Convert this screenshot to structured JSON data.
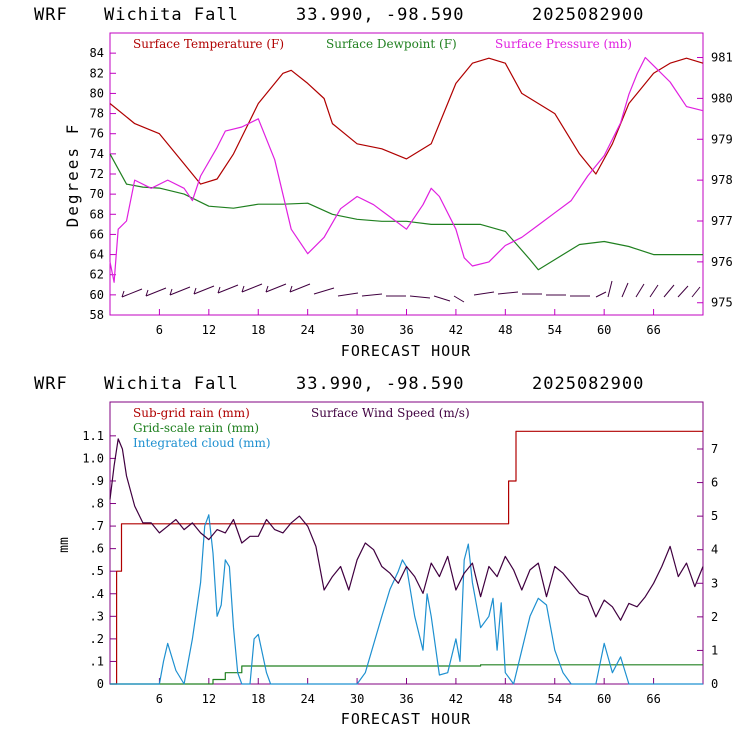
{
  "charts": [
    {
      "title": {
        "model": "WRF",
        "station": "Wichita Fall",
        "coords": "33.990, -98.590",
        "date": "2025082900"
      },
      "xlabel": "FORECAST HOUR",
      "ylabel_left": "Degrees F",
      "legend": [
        {
          "label": "Surface Temperature (F)",
          "color": "#b00000"
        },
        {
          "label": "Surface Dewpoint (F)",
          "color": "#208020"
        },
        {
          "label": "Surface Pressure (mb)",
          "color": "#e020e0"
        }
      ]
    },
    {
      "title": {
        "model": "WRF",
        "station": "Wichita Fall",
        "coords": "33.990, -98.590",
        "date": "2025082900"
      },
      "xlabel": "FORECAST HOUR",
      "ylabel_left": "mm",
      "legend": [
        {
          "label": "Sub-grid rain (mm)",
          "color": "#b00000"
        },
        {
          "label": "Surface Wind Speed (m/s)",
          "color": "#400040"
        },
        {
          "label": "Grid-scale rain (mm)",
          "color": "#208020"
        },
        {
          "label": "Integrated cloud (mm)",
          "color": "#1e90d0"
        }
      ]
    }
  ],
  "chart_data": [
    {
      "type": "line",
      "xlim": [
        0,
        72
      ],
      "x_ticks": [
        "6",
        "12",
        "18",
        "24",
        "30",
        "36",
        "42",
        "48",
        "54",
        "60",
        "66"
      ],
      "ylim_left": [
        58,
        86
      ],
      "y_ticks_left": [
        "58",
        "60",
        "62",
        "64",
        "66",
        "68",
        "70",
        "72",
        "74",
        "76",
        "78",
        "80",
        "82",
        "84"
      ],
      "ylim_right": [
        974.7,
        981.6
      ],
      "y_ticks_right": [
        "975",
        "976",
        "977",
        "978",
        "979",
        "980",
        "981"
      ],
      "series": [
        {
          "name": "Surface Temperature (F)",
          "axis": "left",
          "color": "#b00000",
          "x": [
            0,
            3,
            6,
            9,
            11,
            13,
            15,
            18,
            21,
            22,
            24,
            26,
            27,
            30,
            33,
            36,
            39,
            42,
            44,
            46,
            48,
            50,
            54,
            57,
            59,
            61,
            63,
            66,
            68,
            70,
            72
          ],
          "y": [
            79,
            77,
            76,
            73,
            71,
            71.5,
            74,
            79,
            82,
            82.3,
            81,
            79.5,
            77,
            75,
            74.5,
            73.5,
            75,
            81,
            83,
            83.5,
            83,
            80,
            78,
            74,
            72,
            75,
            79,
            82,
            83,
            83.5,
            83
          ]
        },
        {
          "name": "Surface Dewpoint (F)",
          "axis": "left",
          "color": "#208020",
          "x": [
            0,
            2,
            4,
            6,
            9,
            12,
            15,
            18,
            21,
            24,
            27,
            30,
            33,
            36,
            39,
            42,
            45,
            48,
            51,
            52,
            54,
            57,
            60,
            63,
            66,
            69,
            72
          ],
          "y": [
            74,
            71,
            70.7,
            70.6,
            70,
            68.8,
            68.6,
            69,
            69,
            69.1,
            68,
            67.5,
            67.3,
            67.3,
            67,
            67,
            67,
            66.3,
            63.5,
            62.5,
            63.5,
            65,
            65.3,
            64.8,
            64,
            64,
            64
          ]
        },
        {
          "name": "Surface Pressure (mb)",
          "axis": "right",
          "color": "#e020e0",
          "x": [
            0,
            0.5,
            1,
            2,
            3,
            5,
            7,
            9,
            10,
            11,
            13,
            14,
            16,
            18,
            20,
            22,
            24,
            26,
            28,
            30,
            32,
            34,
            36,
            38,
            39,
            40,
            42,
            43,
            44,
            46,
            48,
            50,
            52,
            54,
            56,
            58,
            60,
            62,
            63,
            64,
            65,
            66,
            68,
            70,
            72
          ],
          "y": [
            976,
            975.5,
            976.8,
            977,
            978,
            977.8,
            978,
            977.8,
            977.5,
            978.1,
            978.8,
            979.2,
            979.3,
            979.5,
            978.5,
            976.8,
            976.2,
            976.6,
            977.3,
            977.6,
            977.4,
            977.1,
            976.8,
            977.4,
            977.8,
            977.6,
            976.8,
            976.1,
            975.9,
            976,
            976.4,
            976.6,
            976.9,
            977.2,
            977.5,
            978.1,
            978.6,
            979.4,
            980.1,
            980.6,
            981,
            980.8,
            980.4,
            979.8,
            979.7
          ]
        }
      ]
    },
    {
      "type": "line",
      "xlim": [
        0,
        72
      ],
      "x_ticks": [
        "6",
        "12",
        "18",
        "24",
        "30",
        "36",
        "42",
        "48",
        "54",
        "60",
        "66"
      ],
      "ylim_left": [
        0,
        1.25
      ],
      "y_ticks_left": [
        "0",
        ".1",
        ".2",
        ".3",
        ".4",
        ".5",
        ".6",
        ".7",
        ".8",
        ".9",
        "1.0",
        "1.1"
      ],
      "ylim_right": [
        0,
        8.4
      ],
      "y_ticks_right": [
        "0",
        "1",
        "2",
        "3",
        "4",
        "5",
        "6",
        "7"
      ],
      "series": [
        {
          "name": "Sub-grid rain (mm)",
          "axis": "left",
          "color": "#b00000",
          "step": true,
          "x": [
            0,
            0.8,
            1.4,
            47.6,
            48.4,
            49.3,
            72
          ],
          "y": [
            0,
            0.5,
            0.71,
            0.71,
            0.9,
            1.12,
            1.12
          ]
        },
        {
          "name": "Grid-scale rain (mm)",
          "axis": "left",
          "color": "#208020",
          "step": true,
          "x": [
            0,
            11,
            12.5,
            14,
            16,
            44.5,
            45,
            72
          ],
          "y": [
            0,
            0,
            0.02,
            0.05,
            0.08,
            0.08,
            0.085,
            0.085
          ]
        },
        {
          "name": "Integrated cloud (mm)",
          "axis": "left",
          "color": "#1e90d0",
          "x": [
            0,
            6,
            6.5,
            7,
            8,
            9,
            10,
            11,
            11.5,
            12,
            12.5,
            13,
            13.5,
            14,
            14.5,
            15,
            15.5,
            16,
            17,
            17.5,
            18,
            19,
            19.5,
            30,
            31,
            33,
            34,
            35,
            35.5,
            36,
            37,
            38,
            38.5,
            39,
            40,
            41,
            42,
            42.5,
            43,
            43.5,
            44,
            45,
            46,
            46.5,
            47,
            47.5,
            48,
            49,
            50,
            51,
            52,
            53,
            54,
            55,
            56,
            57,
            58,
            59,
            60,
            61,
            62,
            63,
            72
          ],
          "y": [
            0,
            0,
            0.1,
            0.18,
            0.06,
            0,
            0.2,
            0.45,
            0.7,
            0.75,
            0.58,
            0.3,
            0.35,
            0.55,
            0.52,
            0.25,
            0.05,
            0,
            0,
            0.2,
            0.22,
            0.05,
            0,
            0,
            0.05,
            0.3,
            0.42,
            0.5,
            0.55,
            0.52,
            0.3,
            0.15,
            0.4,
            0.3,
            0.04,
            0.05,
            0.2,
            0.1,
            0.55,
            0.62,
            0.45,
            0.25,
            0.3,
            0.38,
            0.15,
            0.36,
            0.05,
            0,
            0.15,
            0.3,
            0.38,
            0.35,
            0.15,
            0.05,
            0,
            0,
            0,
            0,
            0.18,
            0.05,
            0.12,
            0,
            0
          ]
        },
        {
          "name": "Surface Wind Speed (m/s)",
          "axis": "right",
          "color": "#400040",
          "x": [
            0,
            0.5,
            1,
            1.5,
            2,
            3,
            4,
            5,
            6,
            7,
            8,
            9,
            10,
            11,
            12,
            13,
            14,
            15,
            16,
            17,
            18,
            19,
            20,
            21,
            22,
            23,
            24,
            25,
            26,
            27,
            28,
            29,
            30,
            31,
            32,
            33,
            34,
            35,
            36,
            37,
            38,
            39,
            40,
            41,
            42,
            43,
            44,
            45,
            46,
            47,
            48,
            49,
            50,
            51,
            52,
            53,
            54,
            55,
            56,
            57,
            58,
            59,
            60,
            61,
            62,
            63,
            64,
            65,
            66,
            67,
            68,
            69,
            70,
            71,
            72
          ],
          "y": [
            5.5,
            6.5,
            7.3,
            7,
            6.2,
            5.3,
            4.8,
            4.8,
            4.5,
            4.7,
            4.9,
            4.6,
            4.8,
            4.5,
            4.3,
            4.6,
            4.5,
            4.9,
            4.2,
            4.4,
            4.4,
            4.9,
            4.6,
            4.5,
            4.8,
            5,
            4.7,
            4.1,
            2.8,
            3.2,
            3.5,
            2.8,
            3.7,
            4.2,
            4,
            3.5,
            3.3,
            3,
            3.5,
            3.2,
            2.7,
            3.6,
            3.2,
            3.8,
            2.8,
            3.3,
            3.6,
            2.6,
            3.5,
            3.2,
            3.8,
            3.4,
            2.8,
            3.4,
            3.6,
            2.6,
            3.5,
            3.3,
            3,
            2.7,
            2.6,
            2,
            2.5,
            2.3,
            1.9,
            2.4,
            2.3,
            2.6,
            3,
            3.5,
            4.1,
            3.2,
            3.6,
            2.9,
            3.5
          ]
        }
      ]
    }
  ]
}
